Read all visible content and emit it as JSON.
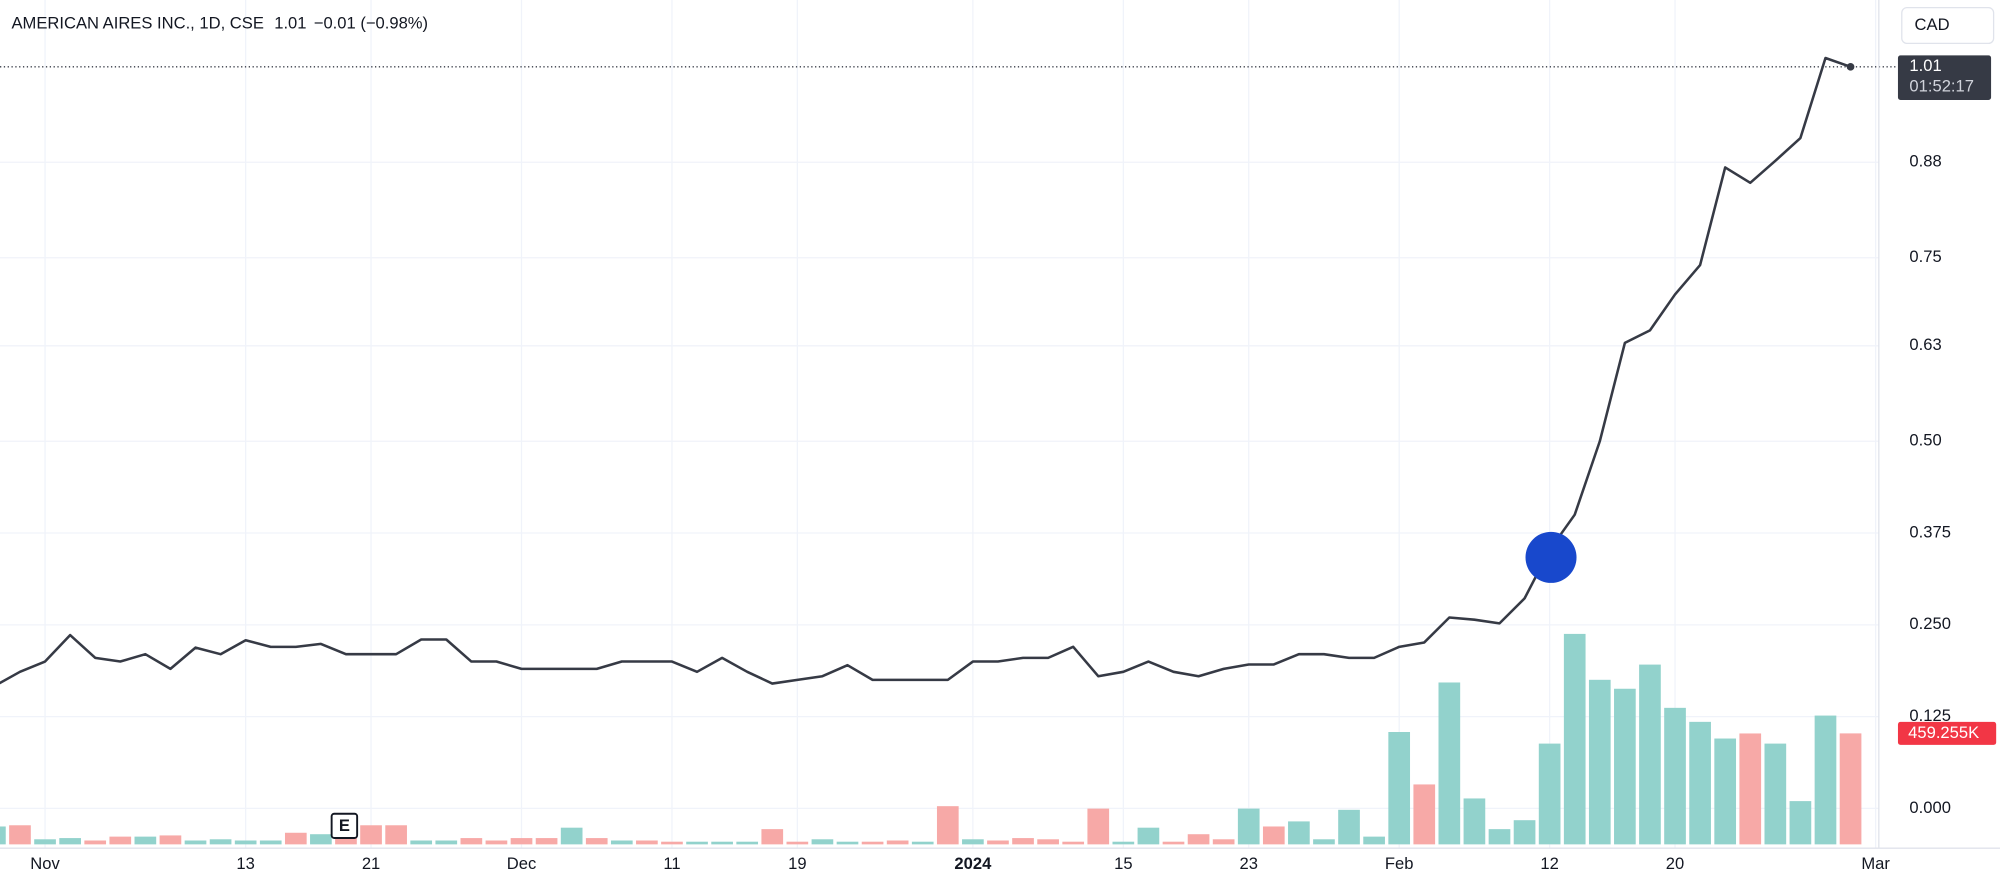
{
  "chart_data": {
    "type": "line",
    "header": {
      "symbol": "AMERICAN AIRES INC., 1D, CSE",
      "last": "1.01",
      "change": "−0.01 (−0.98%)"
    },
    "currency": "CAD",
    "categories": [
      null,
      null,
      "Nov",
      null,
      null,
      null,
      null,
      null,
      null,
      null,
      "13",
      null,
      null,
      null,
      null,
      "21",
      null,
      null,
      null,
      null,
      null,
      "Dec",
      null,
      null,
      null,
      null,
      null,
      "11",
      null,
      null,
      null,
      null,
      "19",
      null,
      null,
      null,
      null,
      null,
      null,
      "2024",
      null,
      null,
      null,
      null,
      null,
      "15",
      null,
      null,
      null,
      null,
      "23",
      null,
      null,
      null,
      null,
      null,
      "Feb",
      null,
      null,
      null,
      null,
      null,
      "12",
      null,
      null,
      null,
      null,
      "20",
      null,
      null,
      null,
      null,
      null,
      null,
      null,
      "Mar"
    ],
    "series": [
      {
        "name": "Price",
        "color": "#363a45",
        "values": [
          0.167,
          0.186,
          0.2,
          0.236,
          0.205,
          0.2,
          0.21,
          0.19,
          0.219,
          0.21,
          0.229,
          0.22,
          0.22,
          0.224,
          0.21,
          0.21,
          0.21,
          0.23,
          0.23,
          0.2,
          0.2,
          0.19,
          0.19,
          0.19,
          0.19,
          0.2,
          0.2,
          0.2,
          0.186,
          0.205,
          0.186,
          0.17,
          0.175,
          0.18,
          0.195,
          0.175,
          0.175,
          0.175,
          0.175,
          0.2,
          0.2,
          0.205,
          0.205,
          0.22,
          0.18,
          0.186,
          0.2,
          0.186,
          0.18,
          0.19,
          0.196,
          0.196,
          0.21,
          0.21,
          0.205,
          0.205,
          0.22,
          0.226,
          0.26,
          0.257,
          0.252,
          0.286,
          0.352,
          0.4,
          0.5,
          0.634,
          0.651,
          0.7,
          0.74,
          0.873,
          0.852,
          0.882,
          0.913,
          1.022,
          1.01,
          null
        ]
      }
    ],
    "volume": {
      "values": [
        74,
        79,
        21,
        26,
        16,
        32,
        32,
        37,
        16,
        21,
        16,
        16,
        48,
        42,
        79,
        79,
        79,
        16,
        16,
        26,
        16,
        26,
        26,
        69,
        26,
        16,
        16,
        11,
        11,
        11,
        11,
        63,
        11,
        21,
        11,
        11,
        16,
        11,
        158,
        21,
        16,
        26,
        21,
        11,
        148,
        11,
        69,
        11,
        42,
        21,
        148,
        74,
        95,
        21,
        143,
        32,
        465,
        248,
        670,
        190,
        63,
        100,
        417,
        871,
        681,
        644,
        744,
        565,
        507,
        438,
        459,
        417,
        179,
        533,
        459.255,
        null
      ],
      "colors": [
        "#92d2cc",
        "#f7a9a7",
        "#92d2cc",
        "#92d2cc",
        "#f7a9a7",
        "#f7a9a7",
        "#92d2cc",
        "#f7a9a7",
        "#92d2cc",
        "#92d2cc",
        "#92d2cc",
        "#92d2cc",
        "#f7a9a7",
        "#92d2cc",
        "#f7a9a7",
        "#f7a9a7",
        "#f7a9a7",
        "#92d2cc",
        "#92d2cc",
        "#f7a9a7",
        "#f7a9a7",
        "#f7a9a7",
        "#f7a9a7",
        "#92d2cc",
        "#f7a9a7",
        "#92d2cc",
        "#f7a9a7",
        "#f7a9a7",
        "#92d2cc",
        "#92d2cc",
        "#92d2cc",
        "#f7a9a7",
        "#f7a9a7",
        "#92d2cc",
        "#92d2cc",
        "#f7a9a7",
        "#f7a9a7",
        "#92d2cc",
        "#f7a9a7",
        "#92d2cc",
        "#f7a9a7",
        "#f7a9a7",
        "#f7a9a7",
        "#f7a9a7",
        "#f7a9a7",
        "#92d2cc",
        "#92d2cc",
        "#f7a9a7",
        "#f7a9a7",
        "#f7a9a7",
        "#92d2cc",
        "#f7a9a7",
        "#92d2cc",
        "#92d2cc",
        "#92d2cc",
        "#92d2cc",
        "#92d2cc",
        "#f7a9a7",
        "#92d2cc",
        "#92d2cc",
        "#92d2cc",
        "#92d2cc",
        "#92d2cc",
        "#92d2cc",
        "#92d2cc",
        "#92d2cc",
        "#92d2cc",
        "#92d2cc",
        "#92d2cc",
        "#92d2cc",
        "#f7a9a7",
        "#92d2cc",
        "#92d2cc",
        "#92d2cc",
        "#f7a9a7",
        null
      ],
      "last": {
        "value": 459.255,
        "label": "459.255K"
      }
    },
    "last_price": 1.01,
    "countdown": "01:52:17",
    "earnings_marker": "E",
    "ylim": [
      -0.049,
      1.101
    ],
    "yticks": [
      {
        "value": 0,
        "label": "0.000"
      },
      0.125,
      {
        "value": 0.25,
        "label": "0.250"
      },
      0.375,
      {
        "value": 0.5,
        "label": "0.50"
      },
      0.63,
      0.75,
      0.88
    ],
    "grid": true
  }
}
